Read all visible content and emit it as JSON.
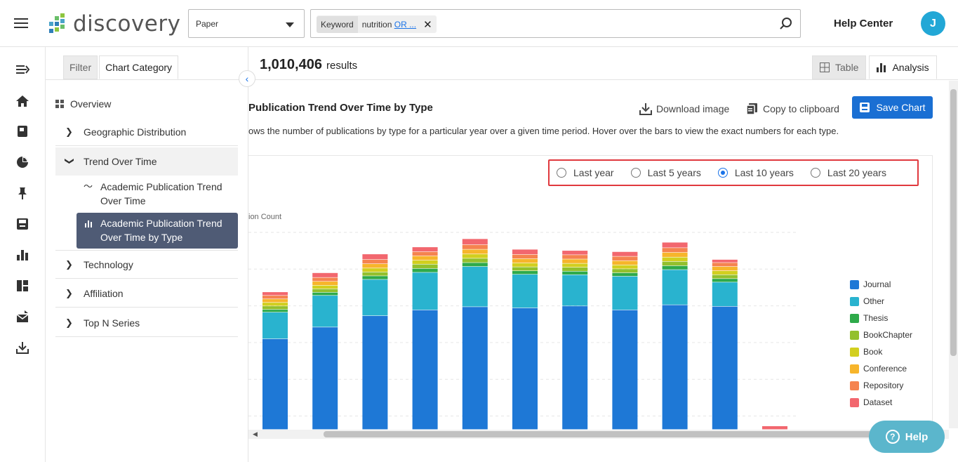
{
  "header": {
    "logo_text": "discovery",
    "type_select_value": "Paper",
    "search_chip_key": "Keyword",
    "search_chip_value": "nutrition",
    "search_chip_more": "OR ...",
    "help_center": "Help Center",
    "avatar_initial": "J"
  },
  "panel": {
    "tabs": [
      {
        "label": "Filter"
      },
      {
        "label": "Chart Category"
      }
    ],
    "overview": "Overview",
    "geo": "Geographic Distribution",
    "trend": "Trend Over Time",
    "sub1": "Academic Publication Trend Over Time",
    "sub2": "Academic Publication Trend Over Time by Type",
    "technology": "Technology",
    "affiliation": "Affiliation",
    "topn": "Top N Series"
  },
  "main": {
    "results_count": "1,010,406",
    "results_label": "results",
    "tab_table": "Table",
    "tab_analysis": "Analysis",
    "chart_title": "Publication Trend Over Time by Type",
    "chart_desc": "ows the number of publications by type for a particular year over a given time period. Hover over the bars to view the exact numbers for each type.",
    "download": "Download image",
    "copy": "Copy to clipboard",
    "save": "Save Chart",
    "ranges": [
      {
        "label": "Last year",
        "selected": false
      },
      {
        "label": "Last 5 years",
        "selected": false
      },
      {
        "label": "Last 10 years",
        "selected": true
      },
      {
        "label": "Last 20 years",
        "selected": false
      }
    ],
    "help_button": "Help"
  },
  "chart_data": {
    "type": "bar",
    "stacked": true,
    "ylabel": "ion Count",
    "grid": true,
    "legend_position": "right",
    "series": [
      {
        "name": "Journal",
        "color": "#1e78d6",
        "values": [
          232,
          262,
          291,
          306,
          314,
          311,
          316,
          306,
          319,
          315,
          0
        ]
      },
      {
        "name": "Other",
        "color": "#29b3cf",
        "values": [
          68,
          81,
          93,
          96,
          103,
          86,
          80,
          86,
          90,
          62,
          0
        ]
      },
      {
        "name": "Thesis",
        "color": "#2eaa4a",
        "values": [
          7,
          8,
          9,
          10,
          10,
          9,
          9,
          9,
          10,
          9,
          0
        ]
      },
      {
        "name": "BookChapter",
        "color": "#93c02d",
        "values": [
          9,
          9,
          10,
          11,
          11,
          10,
          10,
          10,
          11,
          10,
          0
        ]
      },
      {
        "name": "Book",
        "color": "#d2cf1f",
        "values": [
          9,
          9,
          10,
          10,
          11,
          10,
          10,
          10,
          11,
          10,
          0
        ]
      },
      {
        "name": "Conference",
        "color": "#f7b52b",
        "values": [
          9,
          10,
          11,
          11,
          12,
          11,
          11,
          11,
          12,
          11,
          0
        ]
      },
      {
        "name": "Repository",
        "color": "#f5834f",
        "values": [
          9,
          10,
          11,
          11,
          12,
          11,
          11,
          11,
          12,
          10,
          0
        ]
      },
      {
        "name": "Dataset",
        "color": "#f2676e",
        "values": [
          9,
          12,
          14,
          12,
          15,
          13,
          11,
          12,
          14,
          8,
          9
        ]
      }
    ],
    "ylim": [
      0,
      530
    ]
  }
}
